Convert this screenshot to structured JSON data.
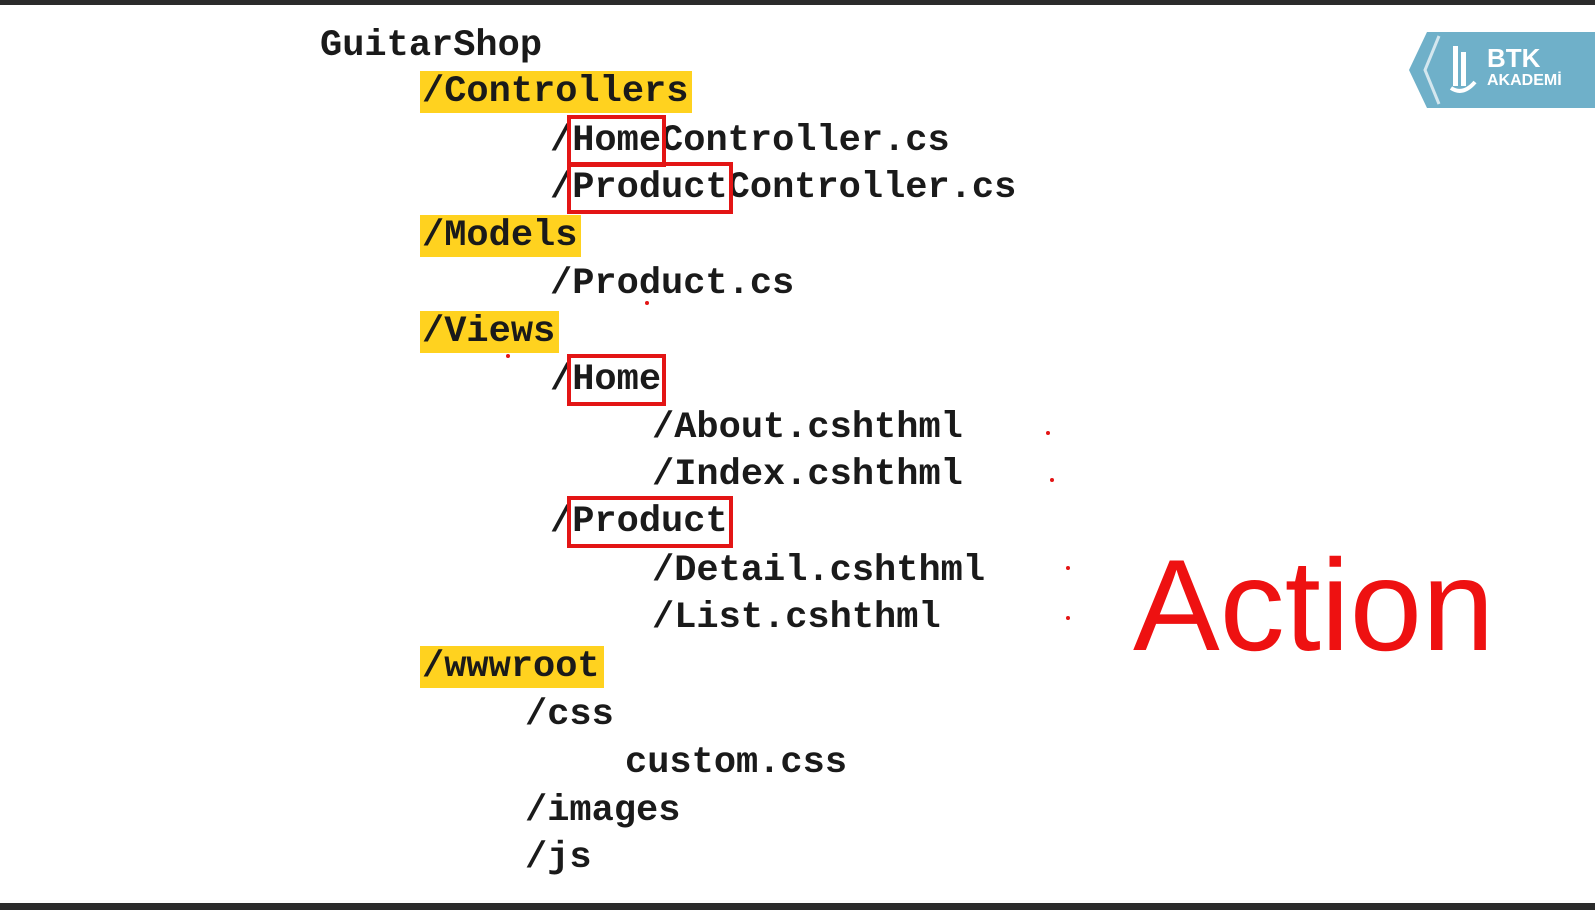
{
  "tree": {
    "root": "GuitarShop",
    "controllers_folder": "/Controllers",
    "home_controller": {
      "prefix": "/",
      "key": "Home",
      "suffix": "Controller.cs"
    },
    "product_controller": {
      "prefix": "/",
      "key": "Product",
      "suffix": "Controller.cs"
    },
    "models_folder": "/Models",
    "product_model": "/Product.cs",
    "views_folder": "/Views",
    "home_view_folder": {
      "prefix": "/",
      "key": "Home"
    },
    "about_view": "/About.cshthml",
    "index_view": "/Index.cshthml",
    "product_view_folder": {
      "prefix": "/",
      "key": "Product"
    },
    "detail_view": "/Detail.cshthml",
    "list_view": "/List.cshthml",
    "wwwroot_folder": "/wwwroot",
    "css_folder": "/css",
    "custom_css": "custom.css",
    "images_folder": "/images",
    "js_folder": "/js"
  },
  "annotation": {
    "label": "Action",
    "color": "#ee1111"
  },
  "logo": {
    "name": "BTK",
    "subtitle": "AKADEMİ",
    "color": "#6fb0c9"
  },
  "colors": {
    "folder_highlight": "#ffd21f",
    "box_outline": "#e31515"
  }
}
